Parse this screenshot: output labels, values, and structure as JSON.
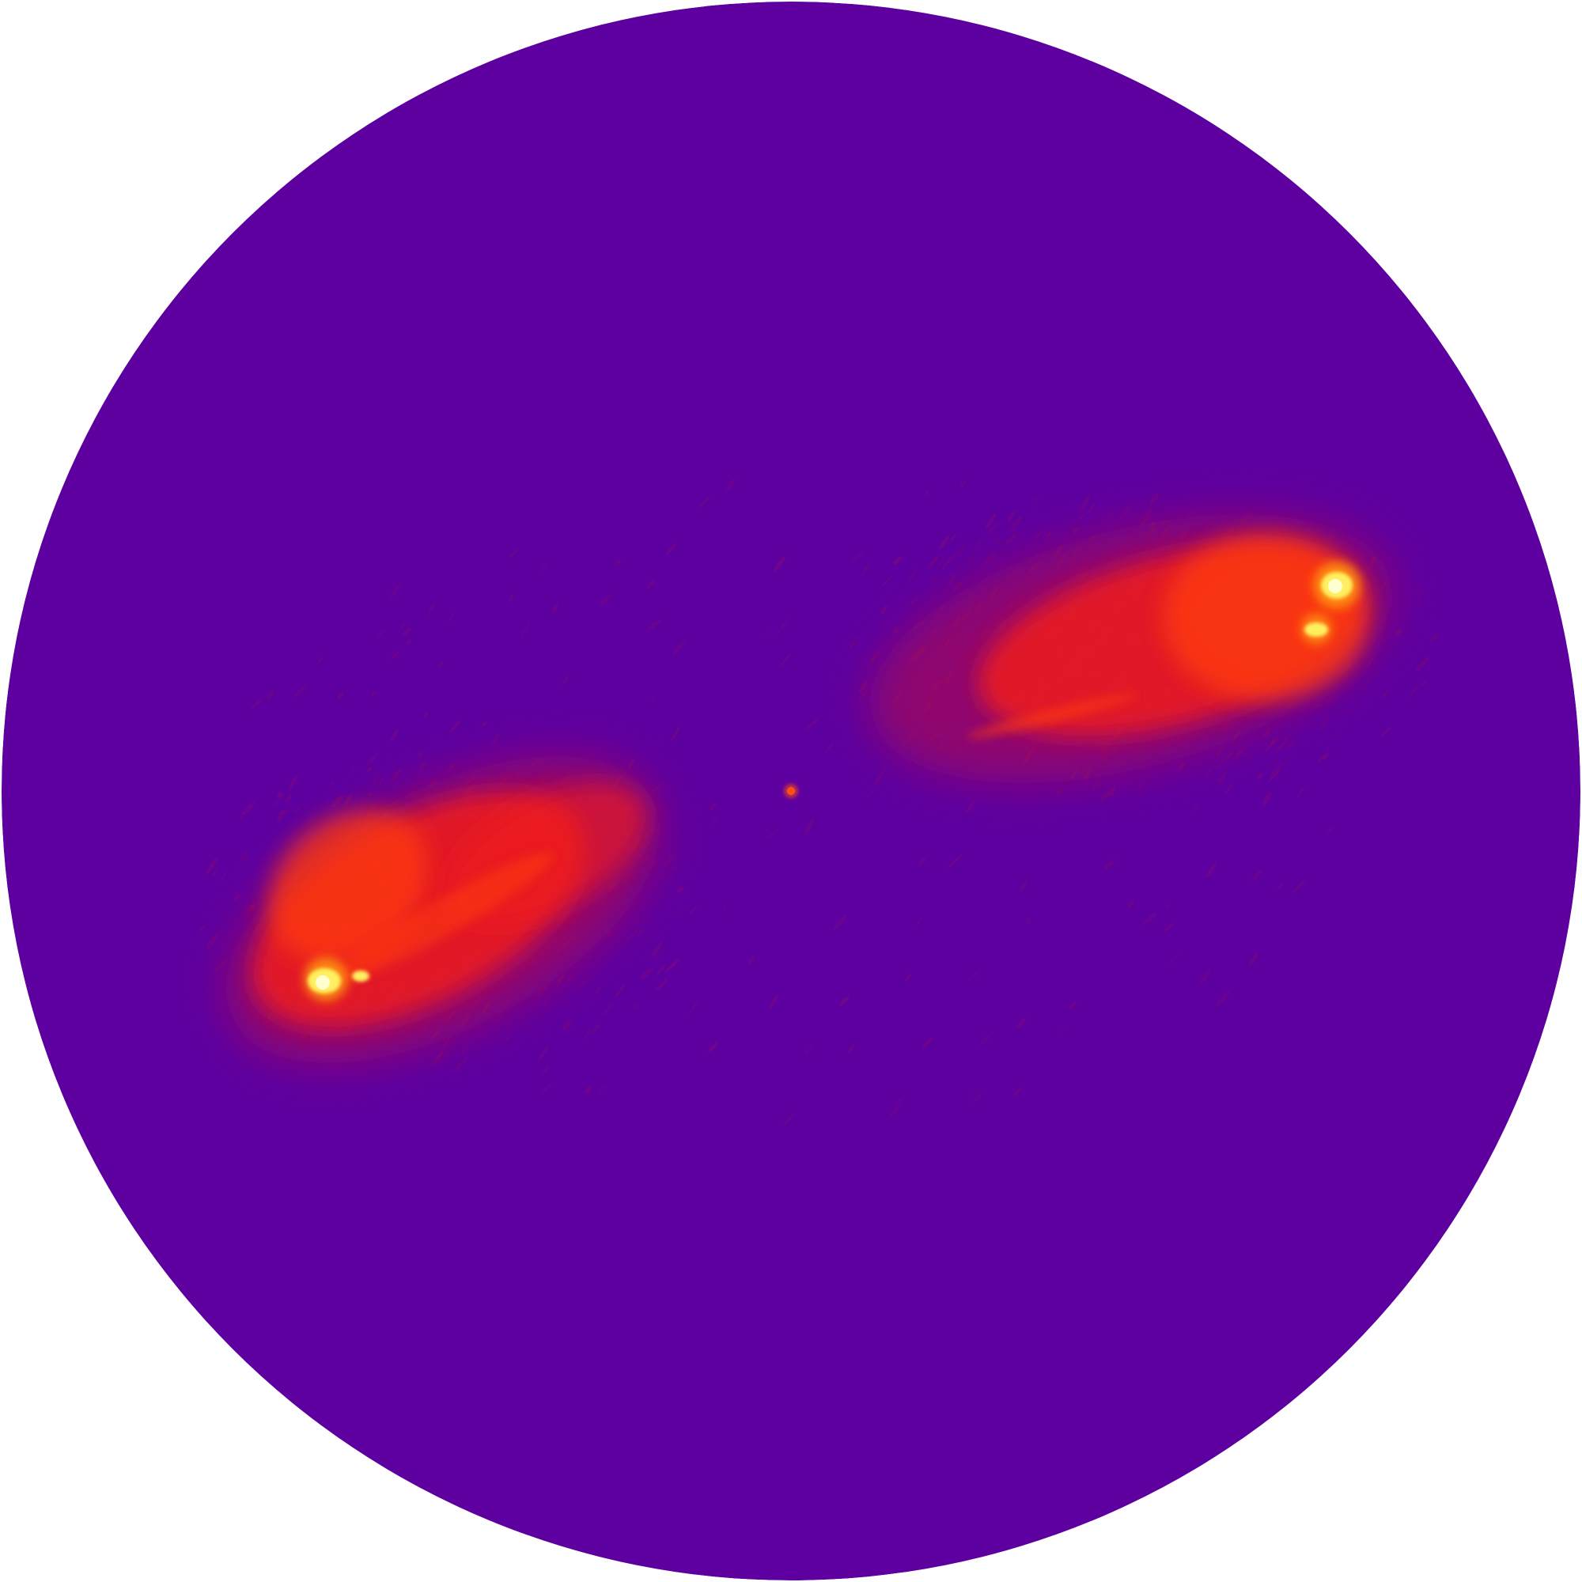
{
  "image": {
    "subject": "radio-galaxy-image",
    "colors": {
      "page_background": "#ffffff",
      "field_background": "#5e00a0",
      "lobe_outer": "#c0103f",
      "lobe_mid": "#f01a1a",
      "lobe_inner": "#ff3a10",
      "hotspot_glow": "#ff9a10",
      "hotspot_core": "#fff060",
      "hotspot_center": "#ffffd0",
      "core": "#ff5010",
      "noise": "#8a0a70"
    }
  }
}
